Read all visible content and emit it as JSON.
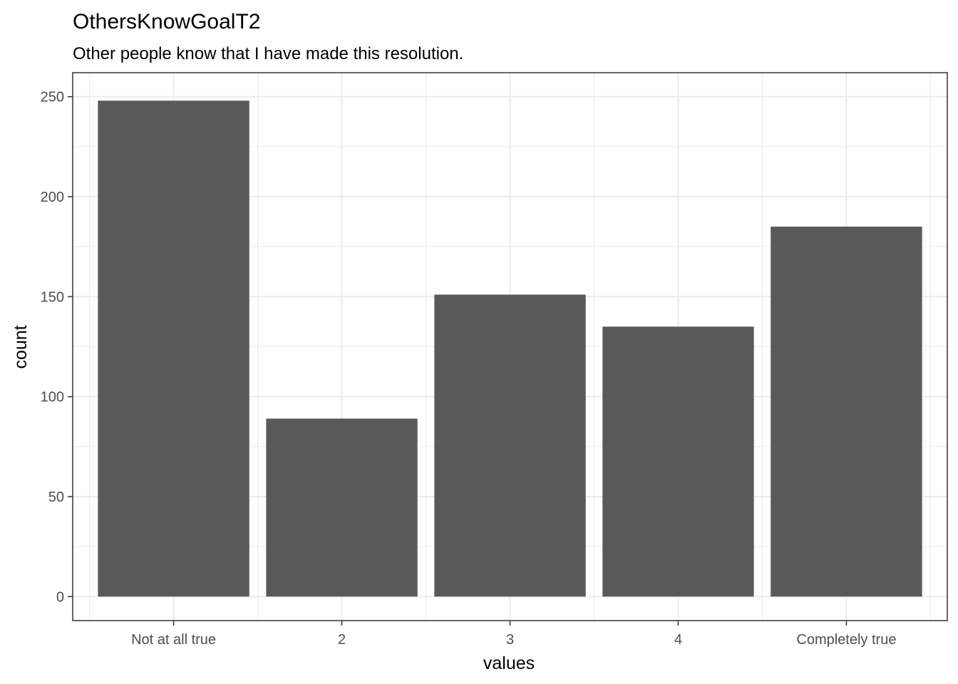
{
  "chart_data": {
    "type": "bar",
    "title": "OthersKnowGoalT2",
    "subtitle": "Other people know that I have made this resolution.",
    "xlabel": "values",
    "ylabel": "count",
    "categories": [
      "Not at all true",
      "2",
      "3",
      "4",
      "Completely true"
    ],
    "values": [
      248,
      89,
      151,
      135,
      185
    ],
    "ylim": [
      -12,
      262
    ],
    "yticks": [
      0,
      50,
      100,
      150,
      200,
      250
    ],
    "grid": true,
    "bar_color": "#595959",
    "grid_color": "#ebebeb",
    "panel_border_color": "#333333"
  }
}
